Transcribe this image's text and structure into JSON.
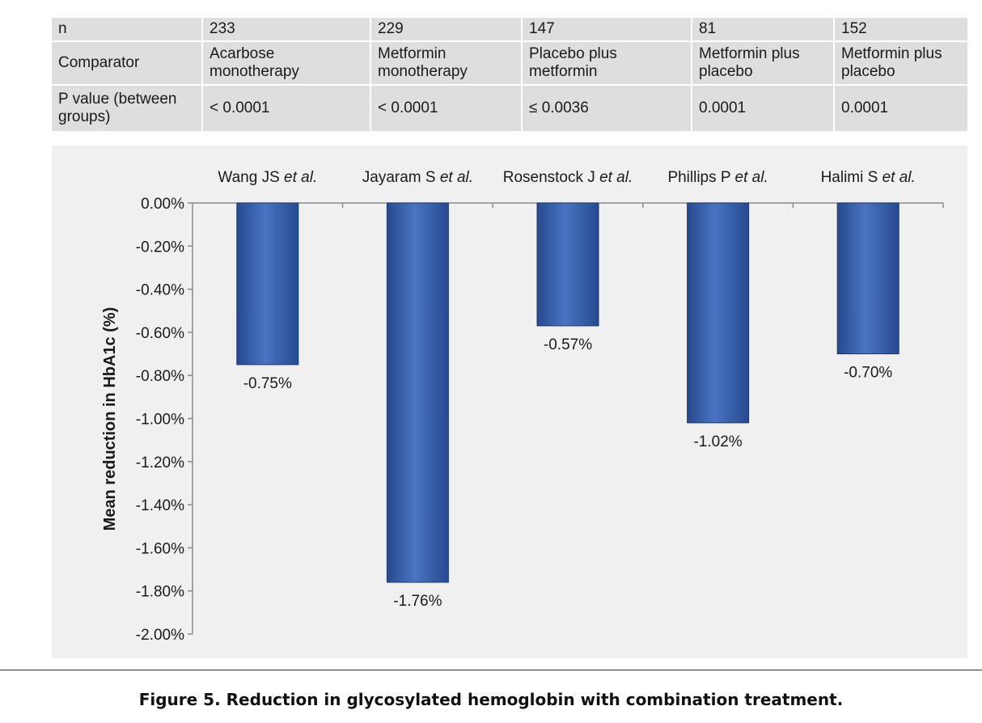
{
  "table": {
    "header_labels": [
      "n",
      "Comparator",
      "P value (between groups)"
    ],
    "rows": [
      {
        "label": "n",
        "cells": [
          "233",
          "229",
          "147",
          "81",
          "152"
        ]
      },
      {
        "label": "Comparator",
        "cells": [
          "Acarbose monotherapy",
          "Metformin monotherapy",
          "Placebo plus metformin",
          "Metformin plus placebo",
          "Metformin plus placebo"
        ]
      },
      {
        "label": "P value (between groups)",
        "cells": [
          "< 0.0001",
          "< 0.0001",
          "≤ 0.0036",
          "0.0001",
          "0.0001"
        ]
      }
    ]
  },
  "chart_data": {
    "type": "bar",
    "categories": [
      {
        "name": "Wang JS",
        "suffix": "et al."
      },
      {
        "name": "Jayaram S",
        "suffix": "et al."
      },
      {
        "name": "Rosenstock J",
        "suffix": "et al."
      },
      {
        "name": "Phillips P",
        "suffix": "et al."
      },
      {
        "name": "Halimi S",
        "suffix": "et al."
      }
    ],
    "values": [
      -0.75,
      -1.76,
      -0.57,
      -1.02,
      -0.7
    ],
    "data_labels": [
      "-0.75%",
      "-1.76%",
      "-0.57%",
      "-1.02%",
      "-0.70%"
    ],
    "ylabel": "Mean reduction in HbA1c (%)",
    "ylim": [
      -2.0,
      0.0
    ],
    "yticks": [
      "0.00%",
      "-0.20%",
      "-0.40%",
      "-0.60%",
      "-0.80%",
      "-1.00%",
      "-1.20%",
      "-1.40%",
      "-1.60%",
      "-1.80%",
      "-2.00%"
    ],
    "grid": false,
    "bar_color": "#3f67b1"
  },
  "caption": "Figure 5. Reduction in glycosylated hemoglobin with combination treatment."
}
